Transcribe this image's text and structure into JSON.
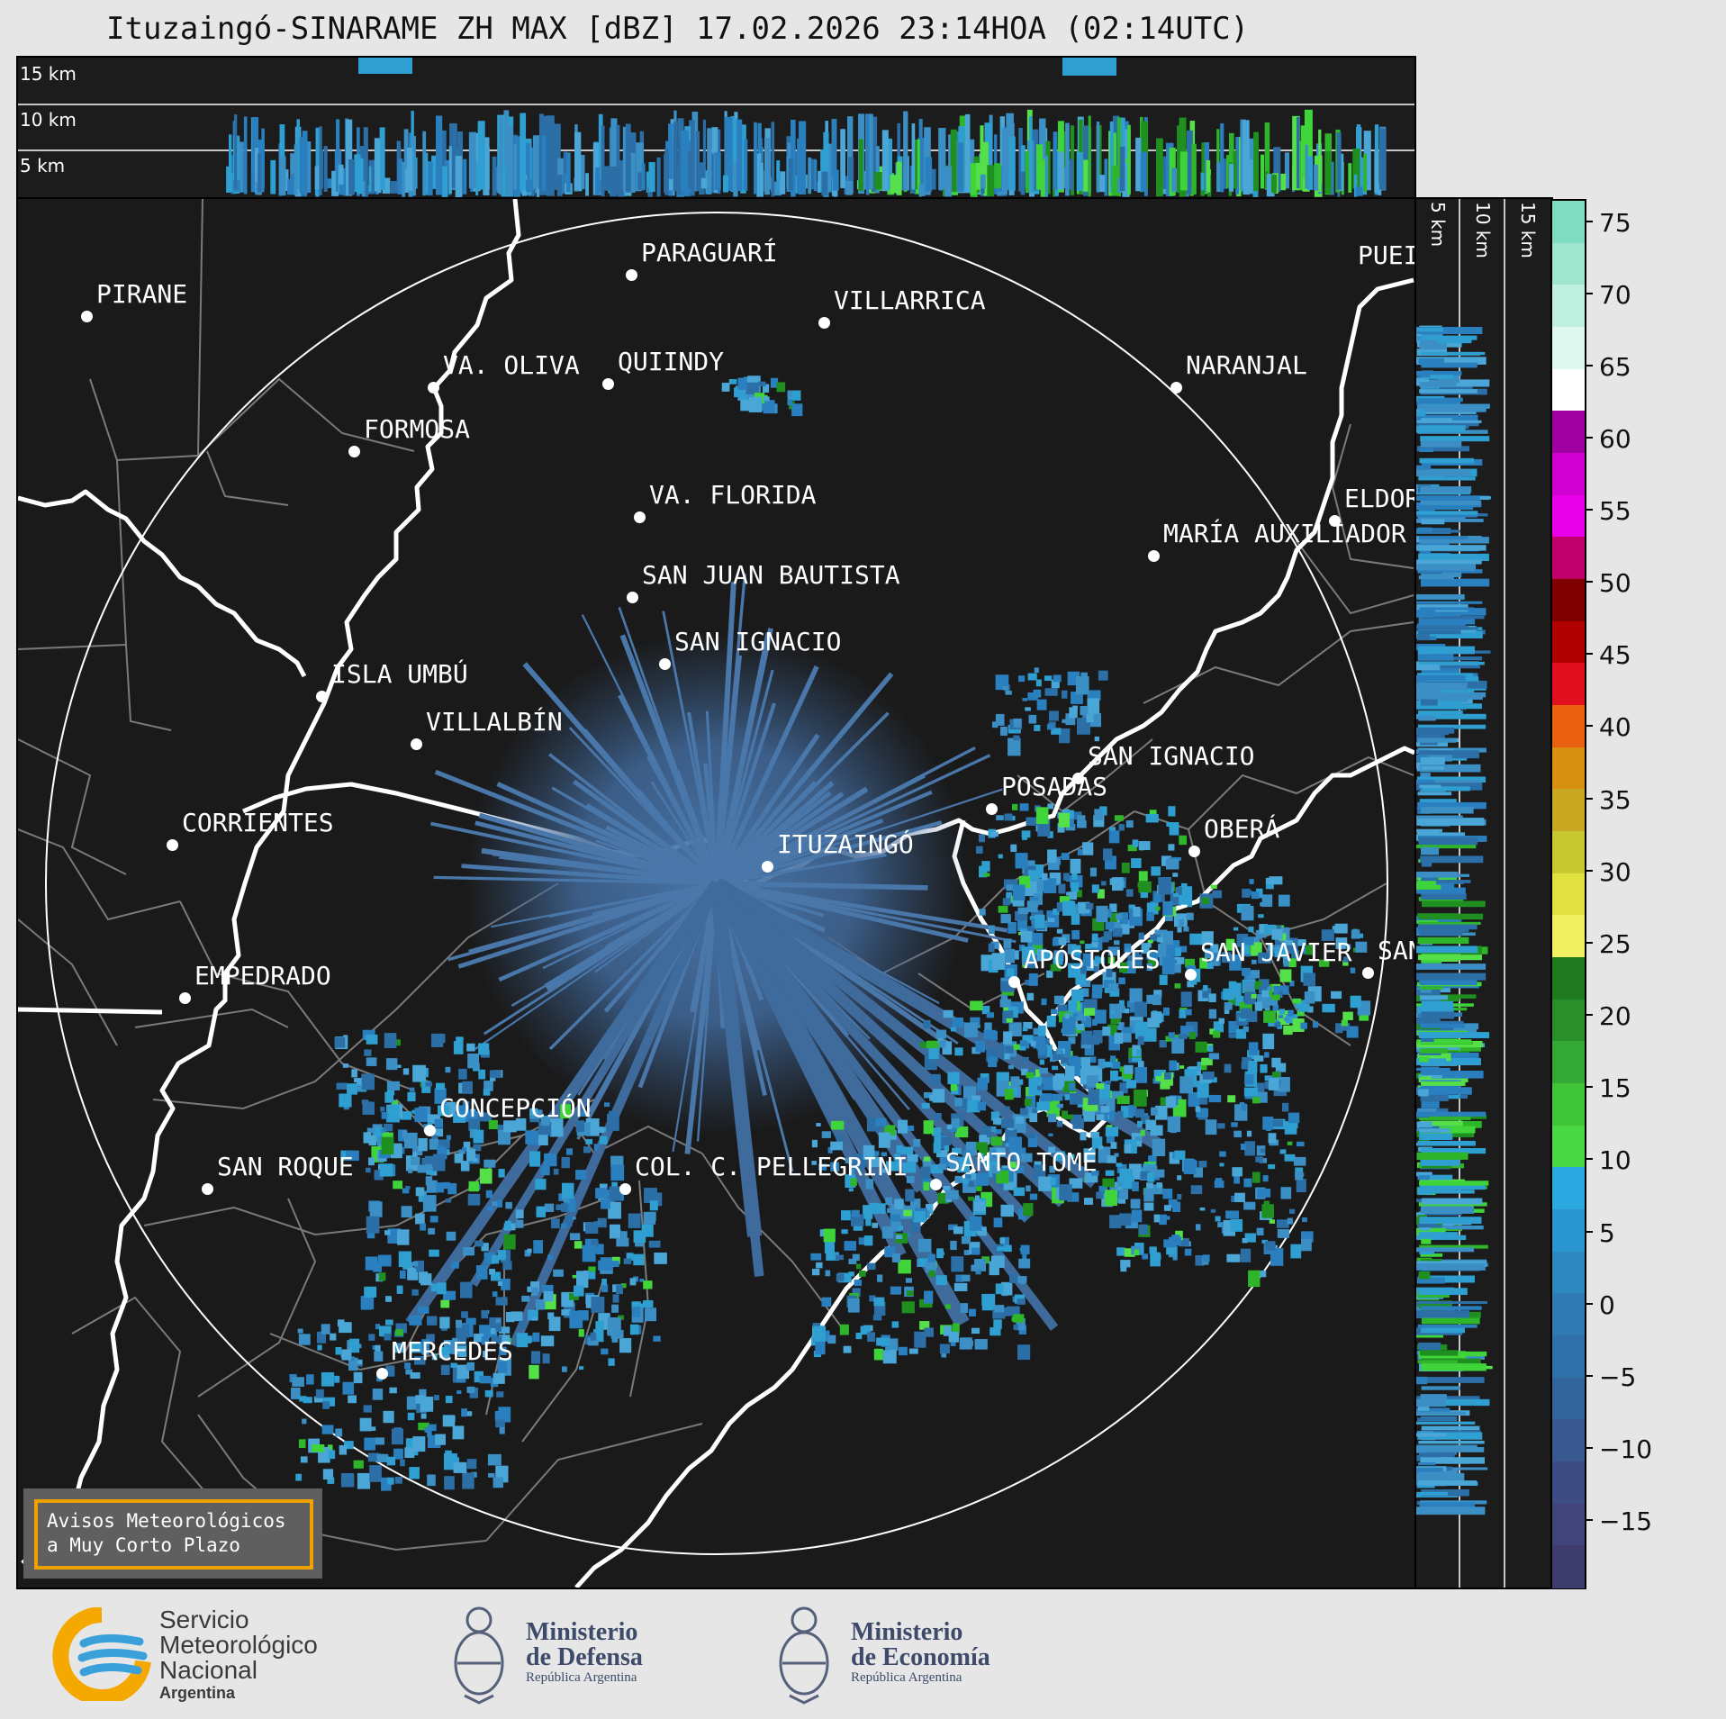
{
  "title": "Ituzaingó-SINARAME ZH MAX [dBZ] 17.02.2026 23:14HOA (02:14UTC)",
  "altitude_labels": [
    "15 km",
    "10 km",
    "5 km"
  ],
  "cities": [
    {
      "name": "PARAGUARÍ"
    },
    {
      "name": "VILLARRICA"
    },
    {
      "name": "PIRANE"
    },
    {
      "name": "QUIINDY"
    },
    {
      "name": "VA. OLIVA"
    },
    {
      "name": "NARANJAL"
    },
    {
      "name": "FORMOSA"
    },
    {
      "name": "VA. FLORIDA"
    },
    {
      "name": "ELDOR"
    },
    {
      "name": "MARÍA AUXILIADOR"
    },
    {
      "name": "SAN JUAN BAUTISTA"
    },
    {
      "name": "SAN IGNACIO"
    },
    {
      "name": "ISLA UMBÚ"
    },
    {
      "name": "VILLALBÍN"
    },
    {
      "name": "SAN IGNACIO"
    },
    {
      "name": "POSADAS"
    },
    {
      "name": "CORRIENTES"
    },
    {
      "name": "ITUZAINGÓ"
    },
    {
      "name": "OBERÁ"
    },
    {
      "name": "EMPEDRADO"
    },
    {
      "name": "APÓSTOLES"
    },
    {
      "name": "SAN JAVIER"
    },
    {
      "name": "SAN"
    },
    {
      "name": "CONCEPCIÓN"
    },
    {
      "name": "COL. C. PELLEGRINI"
    },
    {
      "name": "SANTO TOMÉ"
    },
    {
      "name": "SAN ROQUE"
    },
    {
      "name": "MERCEDES"
    },
    {
      "name": "PUEI"
    }
  ],
  "warning": {
    "line1": "Avisos Meteorológicos",
    "line2": "a Muy Corto Plazo"
  },
  "colorbar": {
    "unit": "dBZ",
    "ticks": [
      "75",
      "70",
      "65",
      "60",
      "55",
      "50",
      "45",
      "40",
      "35",
      "30",
      "25",
      "20",
      "15",
      "10",
      "5",
      "0",
      "−5",
      "−10",
      "−15"
    ],
    "range": [
      -20,
      77
    ]
  },
  "logos": {
    "smn": {
      "line1": "Servicio",
      "line2": "Meteorológico",
      "line3": "Nacional",
      "line4": "Argentina"
    },
    "defensa": {
      "line1": "Ministerio",
      "line2": "de Defensa",
      "line3": "República Argentina"
    },
    "economia": {
      "line1": "Ministerio",
      "line2": "de Economía",
      "line3": "República Argentina"
    }
  },
  "colors": {
    "background": "#1a1a1a",
    "echo_low": "#3d6fa0",
    "echo_mid": "#2e9fd0",
    "echo_green": "#3fd43a",
    "warning_border": "#f0a000"
  }
}
